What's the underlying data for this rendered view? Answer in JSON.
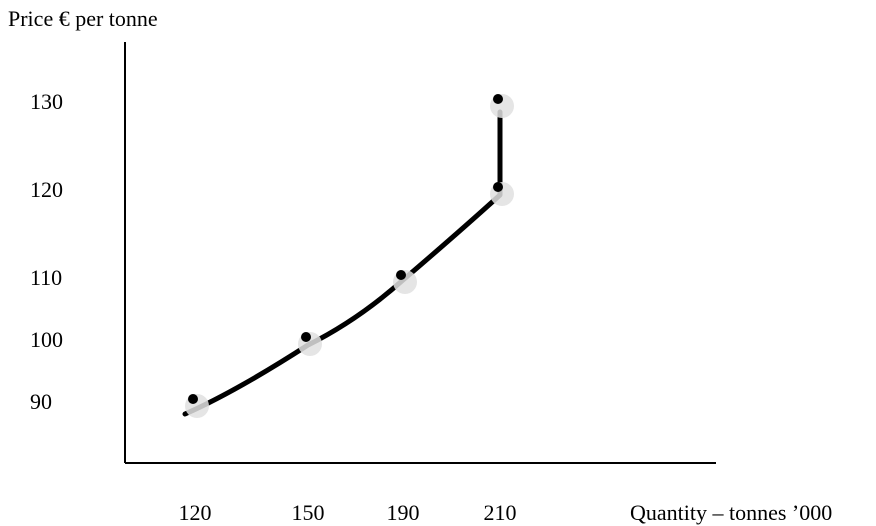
{
  "chart_data": {
    "type": "line",
    "title": "",
    "ylabel": "Price € per tonne",
    "xlabel": "Quantity – tonnes ’000",
    "x_ticks": [
      "120",
      "150",
      "190",
      "210"
    ],
    "y_ticks": [
      "90",
      "100",
      "110",
      "120",
      "130"
    ],
    "points": [
      {
        "x": "120",
        "y": 90
      },
      {
        "x": "150",
        "y": 100
      },
      {
        "x": "190",
        "y": 110
      },
      {
        "x": "210",
        "y": 120
      },
      {
        "x": "210",
        "y": 130
      }
    ],
    "grid": false,
    "legend": "none",
    "line_color": "#000000",
    "marker_halo_color": "#e0e0e0"
  }
}
